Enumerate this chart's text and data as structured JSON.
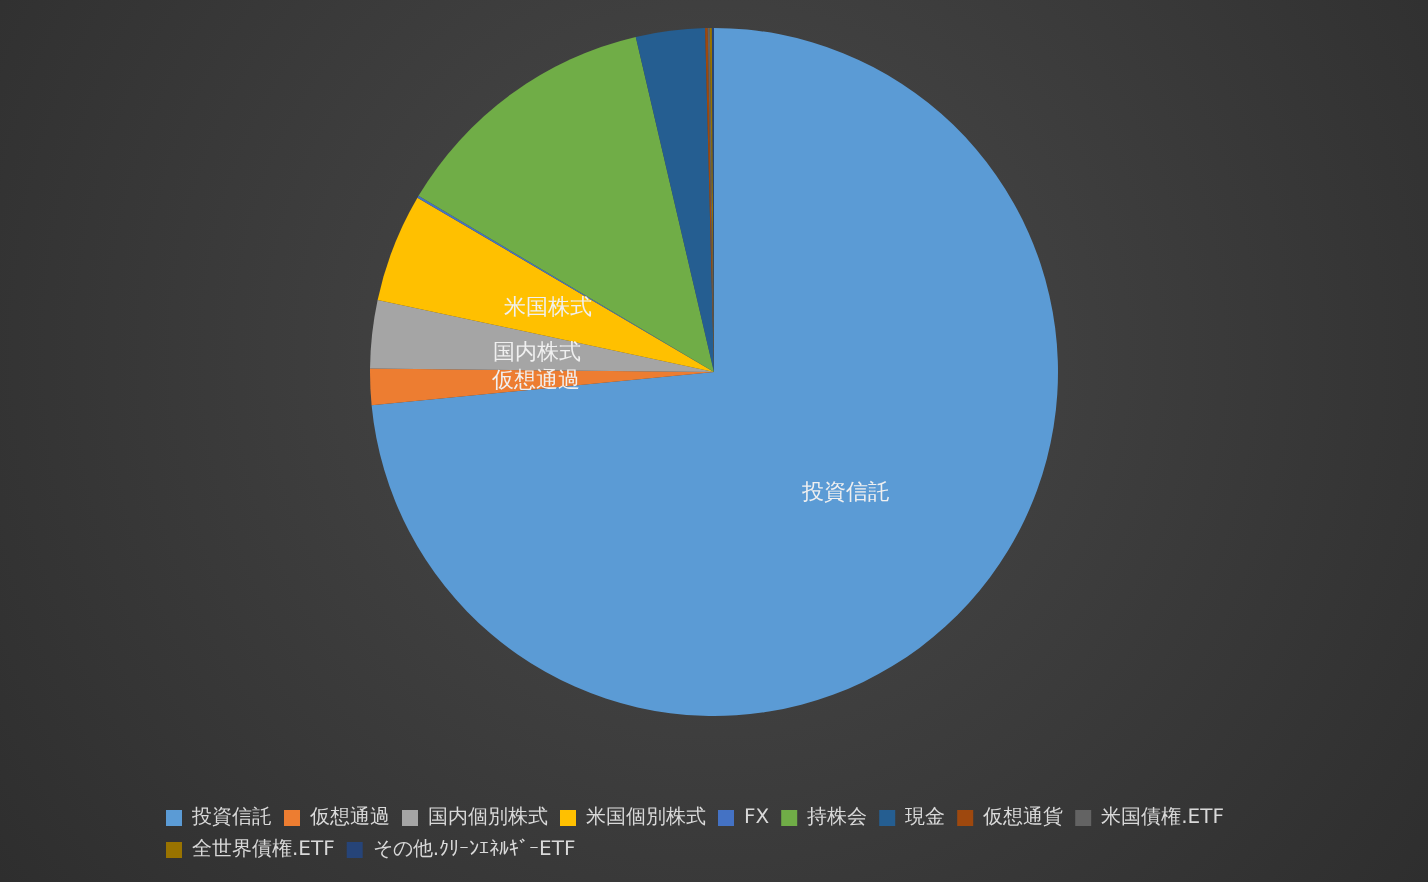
{
  "chart_data": {
    "type": "pie",
    "categories": [
      "投資信託",
      "仮想通過",
      "国内個別株式",
      "米国個別株式",
      "FX",
      "持株会",
      "現金",
      "仮想通貨",
      "米国債権.ETF",
      "全世界債権.ETF",
      "その他.ｸﾘｰﾝｴﾈﾙｷﾞｰETF"
    ],
    "values": [
      73.5,
      1.7,
      3.2,
      5.1,
      0.1,
      12.8,
      3.24,
      0.12,
      0.08,
      0.08,
      0.08
    ],
    "colors": [
      "#5b9bd5",
      "#ed7d31",
      "#a5a5a5",
      "#ffc000",
      "#4472c4",
      "#70ad47",
      "#255e91",
      "#9e480e",
      "#636363",
      "#997300",
      "#264478"
    ],
    "annotations": [
      {
        "text": "投資信託",
        "x": "投資信託"
      },
      {
        "text": "仮想通過",
        "x": "仮想通過"
      },
      {
        "text": "国内株式",
        "x": "国内個別株式"
      },
      {
        "text": "米国株式",
        "x": "米国個別株式"
      }
    ],
    "legend": "bottom"
  }
}
